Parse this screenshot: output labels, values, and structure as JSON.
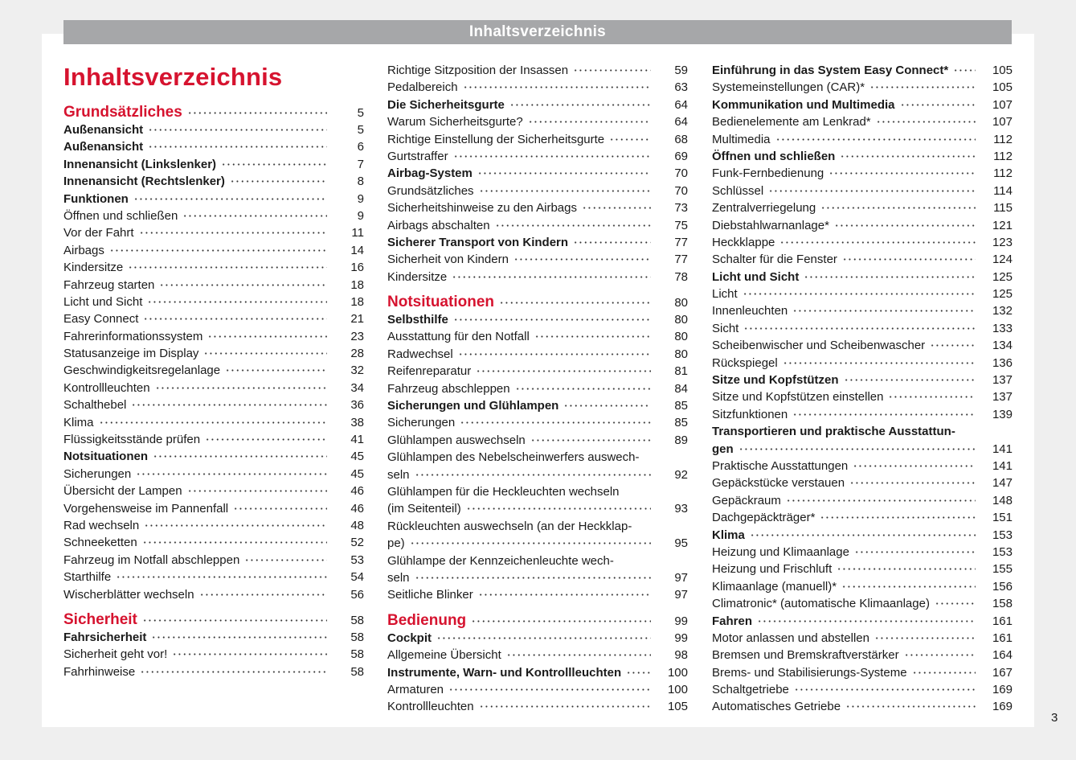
{
  "header": {
    "title": "Inhaltsverzeichnis"
  },
  "page_title": "Inhaltsverzeichnis",
  "page_number": "3",
  "colors": {
    "accent": "#d6132f",
    "header_bar": "#a6a7a9"
  },
  "columns": [
    [
      {
        "k": "sec",
        "t": "Grundsätzliches",
        "p": "5"
      },
      {
        "k": "b",
        "t": "Außenansicht",
        "p": "5"
      },
      {
        "k": "b",
        "t": "Außenansicht",
        "p": "6"
      },
      {
        "k": "b",
        "t": "Innenansicht (Linkslenker)",
        "p": "7"
      },
      {
        "k": "b",
        "t": "Innenansicht (Rechtslenker)",
        "p": "8"
      },
      {
        "k": "b",
        "t": "Funktionen",
        "p": "9"
      },
      {
        "k": "n",
        "t": "Öffnen und schließen",
        "p": "9"
      },
      {
        "k": "n",
        "t": "Vor der Fahrt",
        "p": "11"
      },
      {
        "k": "n",
        "t": "Airbags",
        "p": "14"
      },
      {
        "k": "n",
        "t": "Kindersitze",
        "p": "16"
      },
      {
        "k": "n",
        "t": "Fahrzeug starten",
        "p": "18"
      },
      {
        "k": "n",
        "t": "Licht und Sicht",
        "p": "18"
      },
      {
        "k": "n",
        "t": "Easy Connect",
        "p": "21"
      },
      {
        "k": "n",
        "t": "Fahrerinformationssystem",
        "p": "23"
      },
      {
        "k": "n",
        "t": "Statusanzeige im Display",
        "p": "28"
      },
      {
        "k": "n",
        "t": "Geschwindigkeitsregelanlage",
        "p": "32"
      },
      {
        "k": "n",
        "t": "Kontrollleuchten",
        "p": "34"
      },
      {
        "k": "n",
        "t": "Schalthebel",
        "p": "36"
      },
      {
        "k": "n",
        "t": "Klima",
        "p": "38"
      },
      {
        "k": "n",
        "t": "Flüssigkeitsstände prüfen",
        "p": "41"
      },
      {
        "k": "b",
        "t": "Notsituationen",
        "p": "45"
      },
      {
        "k": "n",
        "t": "Sicherungen",
        "p": "45"
      },
      {
        "k": "n",
        "t": "Übersicht der Lampen",
        "p": "46"
      },
      {
        "k": "n",
        "t": "Vorgehensweise im Pannenfall",
        "p": "46"
      },
      {
        "k": "n",
        "t": "Rad wechseln",
        "p": "48"
      },
      {
        "k": "n",
        "t": "Schneeketten",
        "p": "52"
      },
      {
        "k": "n",
        "t": "Fahrzeug im Notfall abschleppen",
        "p": "53"
      },
      {
        "k": "n",
        "t": "Starthilfe",
        "p": "54"
      },
      {
        "k": "n",
        "t": "Wischerblätter wechseln",
        "p": "56"
      },
      {
        "k": "sec",
        "t": "Sicherheit",
        "p": "58"
      },
      {
        "k": "b",
        "t": "Fahrsicherheit",
        "p": "58"
      },
      {
        "k": "n",
        "t": "Sicherheit geht vor!",
        "p": "58"
      },
      {
        "k": "n",
        "t": "Fahrhinweise",
        "p": "58"
      }
    ],
    [
      {
        "k": "n",
        "t": "Richtige Sitzposition der Insassen",
        "p": "59"
      },
      {
        "k": "n",
        "t": "Pedalbereich",
        "p": "63"
      },
      {
        "k": "b",
        "t": "Die Sicherheitsgurte",
        "p": "64"
      },
      {
        "k": "n",
        "t": "Warum Sicherheitsgurte?",
        "p": "64"
      },
      {
        "k": "n",
        "t": "Richtige Einstellung der Sicherheitsgurte",
        "p": "68"
      },
      {
        "k": "n",
        "t": "Gurtstraffer",
        "p": "69"
      },
      {
        "k": "b",
        "t": "Airbag-System",
        "p": "70"
      },
      {
        "k": "n",
        "t": "Grundsätzliches",
        "p": "70"
      },
      {
        "k": "n",
        "t": "Sicherheitshinweise zu den Airbags",
        "p": "73"
      },
      {
        "k": "n",
        "t": "Airbags abschalten",
        "p": "75"
      },
      {
        "k": "b",
        "t": "Sicherer Transport von Kindern",
        "p": "77"
      },
      {
        "k": "n",
        "t": "Sicherheit von Kindern",
        "p": "77"
      },
      {
        "k": "n",
        "t": "Kindersitze",
        "p": "78"
      },
      {
        "k": "sec",
        "t": "Notsituationen",
        "p": "80"
      },
      {
        "k": "b",
        "t": "Selbsthilfe",
        "p": "80"
      },
      {
        "k": "n",
        "t": "Ausstattung für den Notfall",
        "p": "80"
      },
      {
        "k": "n",
        "t": "Radwechsel",
        "p": "80"
      },
      {
        "k": "n",
        "t": "Reifenreparatur",
        "p": "81"
      },
      {
        "k": "n",
        "t": "Fahrzeug abschleppen",
        "p": "84"
      },
      {
        "k": "b",
        "t": "Sicherungen und Glühlampen",
        "p": "85"
      },
      {
        "k": "n",
        "t": "Sicherungen",
        "p": "85"
      },
      {
        "k": "n",
        "t": "Glühlampen auswechseln",
        "p": "89"
      },
      {
        "k": "n",
        "t1": "Glühlampen des Nebelscheinwerfers auswech-",
        "t": "seln",
        "p": "92"
      },
      {
        "k": "n",
        "t1": "Glühlampen für die Heckleuchten wechseln",
        "t": "(im Seitenteil)",
        "p": "93"
      },
      {
        "k": "n",
        "t1": "Rückleuchten auswechseln (an der Heckklap-",
        "t": "pe)",
        "p": "95"
      },
      {
        "k": "n",
        "t1": "Glühlampe der Kennzeichenleuchte wech-",
        "t": "seln",
        "p": "97"
      },
      {
        "k": "n",
        "t": "Seitliche Blinker",
        "p": "97"
      },
      {
        "k": "sec",
        "t": "Bedienung",
        "p": "99"
      },
      {
        "k": "b",
        "t": "Cockpit",
        "p": "99"
      },
      {
        "k": "n",
        "t": "Allgemeine Übersicht",
        "p": "98"
      },
      {
        "k": "b",
        "t": "Instrumente, Warn- und Kontrollleuchten",
        "p": "100"
      },
      {
        "k": "n",
        "t": "Armaturen",
        "p": "100"
      },
      {
        "k": "n",
        "t": "Kontrollleuchten",
        "p": "105"
      }
    ],
    [
      {
        "k": "b",
        "t": "Einführung in das System Easy Connect*",
        "p": "105"
      },
      {
        "k": "n",
        "t": "Systemeinstellungen (CAR)*",
        "p": "105"
      },
      {
        "k": "b",
        "t": "Kommunikation und Multimedia",
        "p": "107"
      },
      {
        "k": "n",
        "t": "Bedienelemente am Lenkrad*",
        "p": "107"
      },
      {
        "k": "n",
        "t": "Multimedia",
        "p": "112"
      },
      {
        "k": "b",
        "t": "Öffnen und schließen",
        "p": "112"
      },
      {
        "k": "n",
        "t": "Funk-Fernbedienung",
        "p": "112"
      },
      {
        "k": "n",
        "t": "Schlüssel",
        "p": "114"
      },
      {
        "k": "n",
        "t": "Zentralverriegelung",
        "p": "115"
      },
      {
        "k": "n",
        "t": "Diebstahlwarnanlage*",
        "p": "121"
      },
      {
        "k": "n",
        "t": "Heckklappe",
        "p": "123"
      },
      {
        "k": "n",
        "t": "Schalter für die Fenster",
        "p": "124"
      },
      {
        "k": "b",
        "t": "Licht und Sicht",
        "p": "125"
      },
      {
        "k": "n",
        "t": "Licht",
        "p": "125"
      },
      {
        "k": "n",
        "t": "Innenleuchten",
        "p": "132"
      },
      {
        "k": "n",
        "t": "Sicht",
        "p": "133"
      },
      {
        "k": "n",
        "t": "Scheibenwischer und Scheibenwascher",
        "p": "134"
      },
      {
        "k": "n",
        "t": "Rückspiegel",
        "p": "136"
      },
      {
        "k": "b",
        "t": "Sitze und Kopfstützen",
        "p": "137"
      },
      {
        "k": "n",
        "t": "Sitze und Kopfstützen einstellen",
        "p": "137"
      },
      {
        "k": "n",
        "t": "Sitzfunktionen",
        "p": "139"
      },
      {
        "k": "b",
        "t1": "Transportieren und praktische Ausstattun-",
        "t": "gen",
        "p": "141"
      },
      {
        "k": "n",
        "t": "Praktische Ausstattungen",
        "p": "141"
      },
      {
        "k": "n",
        "t": "Gepäckstücke verstauen",
        "p": "147"
      },
      {
        "k": "n",
        "t": "Gepäckraum",
        "p": "148"
      },
      {
        "k": "n",
        "t": "Dachgepäckträger*",
        "p": "151"
      },
      {
        "k": "b",
        "t": "Klima",
        "p": "153"
      },
      {
        "k": "n",
        "t": "Heizung und Klimaanlage",
        "p": "153"
      },
      {
        "k": "n",
        "t": "Heizung und Frischluft",
        "p": "155"
      },
      {
        "k": "n",
        "t": "Klimaanlage (manuell)*",
        "p": "156"
      },
      {
        "k": "n",
        "t": "Climatronic* (automatische Klimaanlage)",
        "p": "158"
      },
      {
        "k": "b",
        "t": "Fahren",
        "p": "161"
      },
      {
        "k": "n",
        "t": "Motor anlassen und abstellen",
        "p": "161"
      },
      {
        "k": "n",
        "t": "Bremsen und Bremskraftverstärker",
        "p": "164"
      },
      {
        "k": "n",
        "t": "Brems- und Stabilisierungs-Systeme",
        "p": "167"
      },
      {
        "k": "n",
        "t": "Schaltgetriebe",
        "p": "169"
      },
      {
        "k": "n",
        "t": "Automatisches Getriebe",
        "p": "169"
      }
    ]
  ]
}
